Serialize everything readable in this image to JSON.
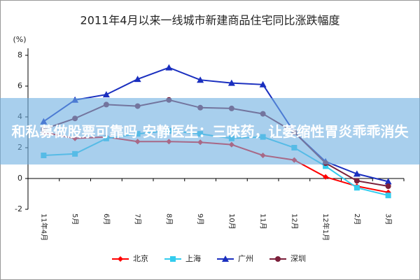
{
  "chart_data": {
    "type": "line",
    "title": "2011年4月以来一线城市新建商品住宅同比涨跌幅度",
    "y_label": "(%)",
    "categories": [
      "11年4月",
      "5月",
      "6月",
      "7月",
      "8月",
      "9月",
      "10月",
      "11月",
      "12月",
      "12年1月",
      "2月",
      "3月"
    ],
    "ylim": [
      -2,
      8
    ],
    "yticks": [
      -2,
      0,
      2,
      4,
      6,
      8
    ],
    "series": [
      {
        "name": "北京",
        "color": "#ff0000",
        "marker": "diamond",
        "values": [
          3.0,
          2.6,
          2.7,
          2.4,
          2.4,
          2.35,
          2.2,
          1.5,
          1.2,
          0.1,
          -0.5,
          -0.9
        ]
      },
      {
        "name": "上海",
        "color": "#33ccee",
        "marker": "square",
        "values": [
          1.5,
          1.6,
          2.6,
          2.9,
          3.1,
          2.9,
          2.6,
          2.7,
          2.0,
          0.8,
          -0.6,
          -1.1
        ]
      },
      {
        "name": "广州",
        "color": "#1a2fbf",
        "marker": "triangle",
        "values": [
          3.7,
          5.1,
          5.45,
          6.45,
          7.2,
          6.4,
          6.2,
          6.1,
          3.0,
          1.1,
          0.3,
          -0.2
        ]
      },
      {
        "name": "深圳",
        "color": "#7b1f3a",
        "marker": "circle",
        "values": [
          3.2,
          3.9,
          4.8,
          4.7,
          5.1,
          4.6,
          4.55,
          4.2,
          3.0,
          1.0,
          -0.15,
          -0.5
        ]
      }
    ]
  },
  "overlay_text": "和私募做股票可靠吗 安静医生：三味药，让萎缩性胃炎乖乖消失"
}
